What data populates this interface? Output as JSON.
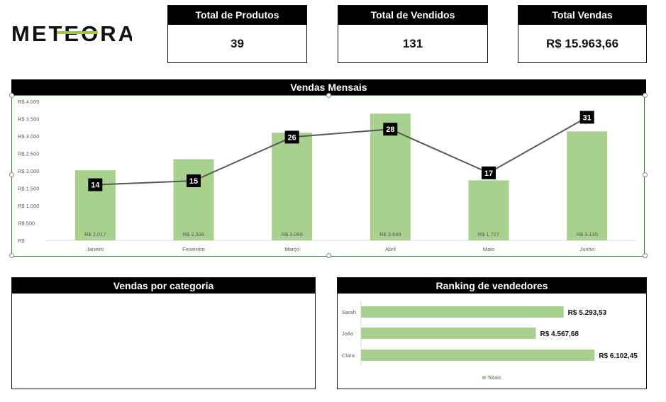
{
  "logo": {
    "text": "METEORA"
  },
  "kpis": [
    {
      "label": "Total de Produtos",
      "value": "39"
    },
    {
      "label": "Total de Vendidos",
      "value": "131"
    },
    {
      "label": "Total Vendas",
      "value": "R$ 15.963,66"
    }
  ],
  "monthly": {
    "title": "Vendas Mensais"
  },
  "category": {
    "title": "Vendas por categoria"
  },
  "ranking": {
    "title": "Ranking de vendedores"
  },
  "colors": {
    "bar": "#a9d18e",
    "line": "#595959",
    "header": "#000000",
    "accent": "#a4c639"
  },
  "chart_data": [
    {
      "type": "bar",
      "title": "Vendas Mensais",
      "categories": [
        "Janeiro",
        "Fevereiro",
        "Março",
        "Abril",
        "Maio",
        "Junho"
      ],
      "series": [
        {
          "type": "bar",
          "values": [
            2017,
            2336,
            3099,
            3649,
            1727,
            3135
          ],
          "labels": [
            "R$ 2.017",
            "R$ 2.336",
            "R$ 3.099",
            "R$ 3.649",
            "R$ 1.727",
            "R$ 3.135"
          ]
        },
        {
          "type": "line",
          "axis": "secondary",
          "values": [
            14,
            15,
            26,
            28,
            17,
            31
          ],
          "labels": [
            "14",
            "15",
            "26",
            "28",
            "17",
            "31"
          ]
        }
      ],
      "ylim": [
        0,
        4000
      ],
      "yticks": [
        "R$",
        "R$ 500",
        "R$ 1.000",
        "R$ 1.500",
        "R$ 2.000",
        "R$ 2.500",
        "R$ 3.000",
        "R$ 3.500",
        "R$ 4.000"
      ],
      "y2lim": [
        0,
        35
      ],
      "legend": "none"
    },
    {
      "type": "bar",
      "orientation": "horizontal",
      "title": "Ranking de vendedores",
      "categories": [
        "Sarah",
        "João",
        "Clara"
      ],
      "series": [
        {
          "name": "Totais",
          "values": [
            5293.53,
            4567.68,
            6102.45
          ],
          "labels": [
            "R$ 5.293,53",
            "R$ 4.567,68",
            "R$ 6.102,45"
          ]
        }
      ],
      "xlim": [
        0,
        6300
      ],
      "legend": "bottom-center"
    }
  ]
}
